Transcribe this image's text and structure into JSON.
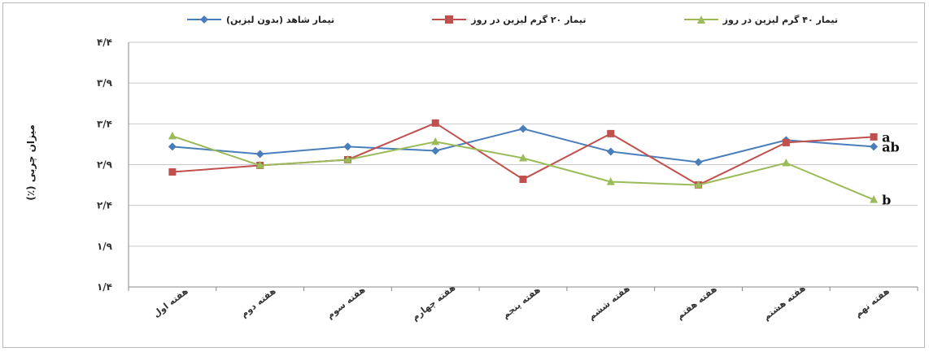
{
  "chart_data": {
    "type": "line",
    "title": "",
    "ylabel": "میزان چربی (٪)",
    "xlabel": "",
    "ylim": [
      1.4,
      4.4
    ],
    "yticks": [
      1.4,
      1.9,
      2.4,
      2.9,
      3.4,
      3.9,
      4.4
    ],
    "ytick_labels": [
      "۱/۴",
      "۱/۹",
      "۲/۴",
      "۲/۹",
      "۳/۴",
      "۳/۹",
      "۴/۴"
    ],
    "categories": [
      "هفته اول",
      "هفته دوم",
      "هفته سوم",
      "هفته چهارم",
      "هفته پنجم",
      "هفته ششم",
      "هفته هفتم",
      "هفته هشتم",
      "هفته نهم"
    ],
    "grid": true,
    "legend_position": "top",
    "series": [
      {
        "name": "تیمار شاهد (بدون لیزین)",
        "color": "#4a7ebb",
        "marker": "diamond",
        "values": [
          3.12,
          3.03,
          3.12,
          3.07,
          3.34,
          3.06,
          2.93,
          3.2,
          3.12
        ]
      },
      {
        "name": "تیمار ۲۰ گرم لیزین در روز",
        "color": "#c0504d",
        "marker": "square",
        "values": [
          2.81,
          2.89,
          2.96,
          3.41,
          2.72,
          3.28,
          2.65,
          3.17,
          3.24
        ]
      },
      {
        "name": "تیمار ۴۰ گرم لیزین در روز",
        "color": "#9bbb59",
        "marker": "triangle",
        "values": [
          3.25,
          2.89,
          2.96,
          3.18,
          2.98,
          2.69,
          2.65,
          2.92,
          2.47
        ]
      }
    ],
    "annotations": [
      {
        "text": "a",
        "series": 1
      },
      {
        "text": "ab",
        "series": 0
      },
      {
        "text": "b",
        "series": 2
      }
    ]
  }
}
